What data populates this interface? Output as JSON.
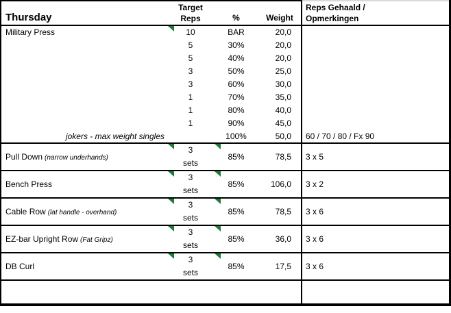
{
  "colors": {
    "background": "#ffffff",
    "border": "#000000",
    "text": "#000000",
    "indicator_green": "#1e7b34",
    "top_edge_light": "#d9d9d9"
  },
  "header": {
    "day": "Thursday",
    "target_reps_line1": "Target",
    "target_reps_line2": "Reps",
    "percent": "%",
    "weight": "Weight",
    "notes_line1": "Reps Gehaald /",
    "notes_line2": "Opmerkingen"
  },
  "military_press": {
    "name": "Military Press",
    "warmup_rows": [
      {
        "reps": "10",
        "pct": "BAR",
        "weight": "20,0"
      },
      {
        "reps": "5",
        "pct": "30%",
        "weight": "20,0"
      },
      {
        "reps": "5",
        "pct": "40%",
        "weight": "20,0"
      },
      {
        "reps": "3",
        "pct": "50%",
        "weight": "25,0"
      },
      {
        "reps": "3",
        "pct": "60%",
        "weight": "30,0"
      },
      {
        "reps": "1",
        "pct": "70%",
        "weight": "35,0"
      },
      {
        "reps": "1",
        "pct": "80%",
        "weight": "40,0"
      },
      {
        "reps": "1",
        "pct": "90%",
        "weight": "45,0"
      }
    ],
    "jokers_row": {
      "label": "jokers - max weight singles",
      "pct": "100%",
      "weight": "50,0",
      "result": "60 / 70 / 80 / Fx 90"
    }
  },
  "exercises": [
    {
      "name": "Pull Down",
      "note": "(narrow underhands)",
      "sets_count": "3",
      "sets_word": "sets",
      "pct": "85%",
      "weight": "78,5",
      "result": "3 x 5"
    },
    {
      "name": "Bench Press",
      "note": "",
      "sets_count": "3",
      "sets_word": "sets",
      "pct": "85%",
      "weight": "106,0",
      "result": "3 x 2"
    },
    {
      "name": "Cable Row",
      "note": "(lat handle - overhand)",
      "sets_count": "3",
      "sets_word": "sets",
      "pct": "85%",
      "weight": "78,5",
      "result": "3 x 6"
    },
    {
      "name": "EZ-bar Upright Row",
      "note": "(Fat Gripz)",
      "sets_count": "3",
      "sets_word": "sets",
      "pct": "85%",
      "weight": "36,0",
      "result": "3 x 6"
    },
    {
      "name": "DB Curl",
      "note": "",
      "sets_count": "3",
      "sets_word": "sets",
      "pct": "85%",
      "weight": "17,5",
      "result": "3 x 6"
    }
  ]
}
